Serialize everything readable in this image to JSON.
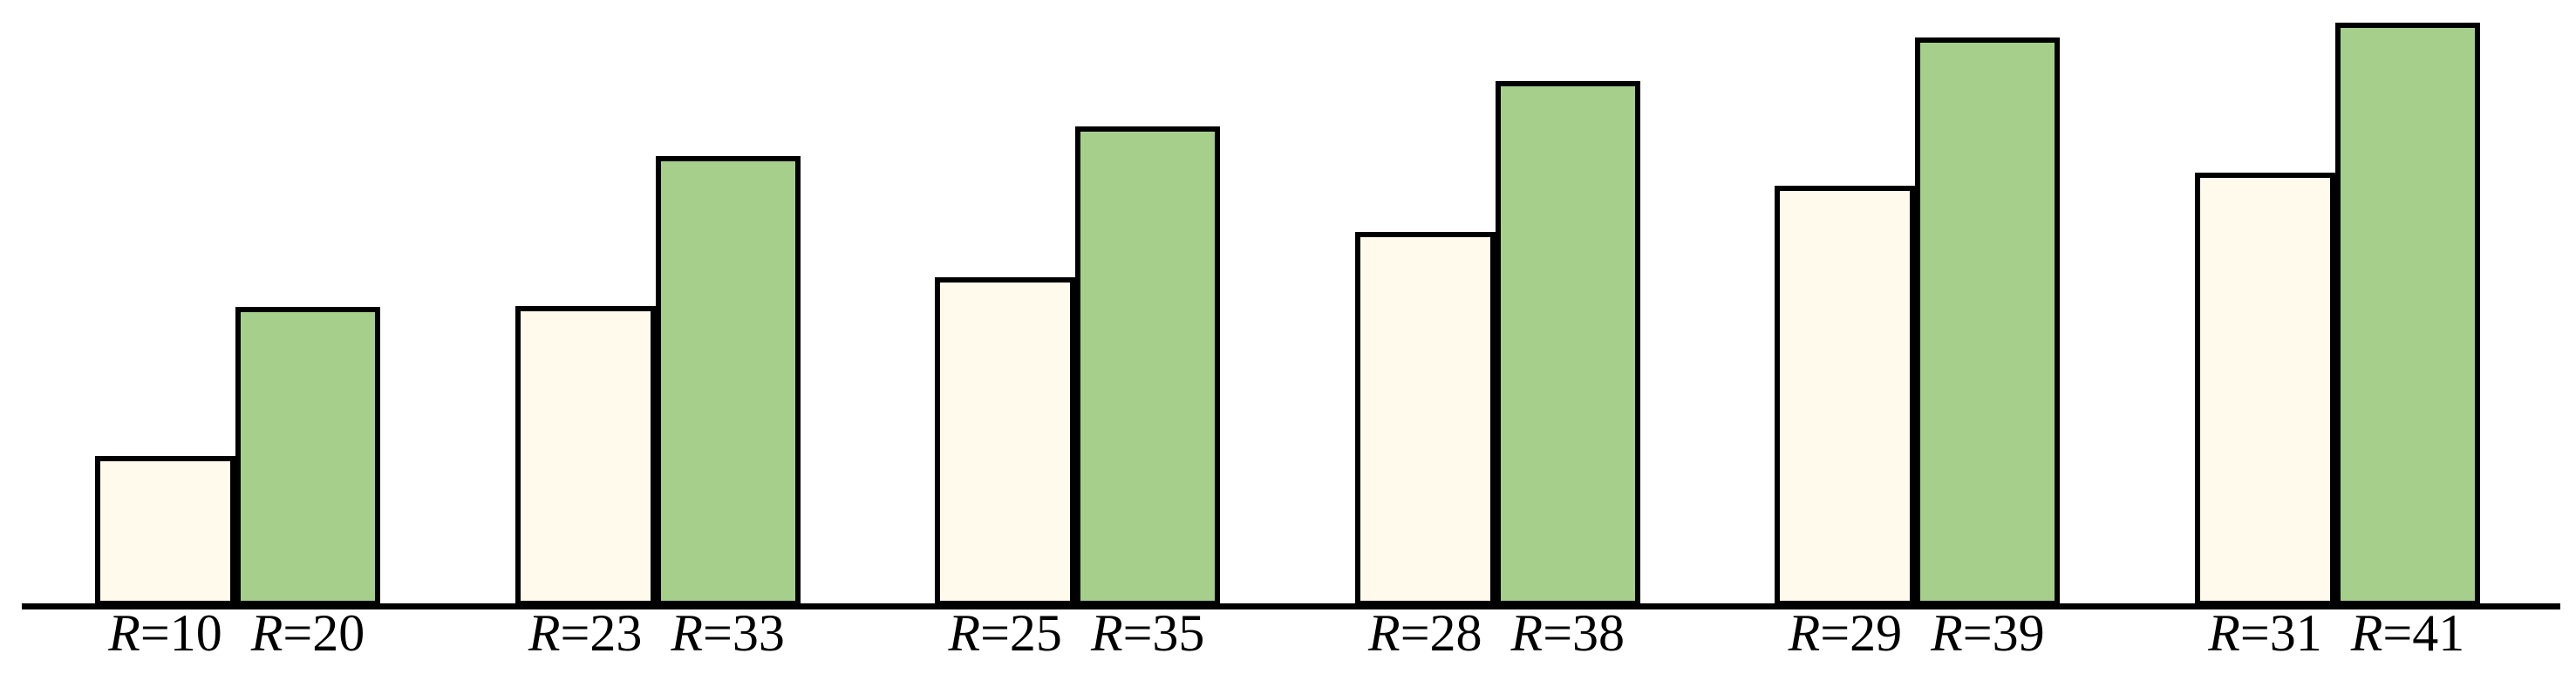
{
  "background_color": "#ffffff",
  "chart_data": {
    "type": "bar",
    "title": "",
    "xlabel": "",
    "ylabel": "",
    "y_axis_visible": false,
    "x_axis_line_visible": true,
    "gridlines": false,
    "legend": null,
    "edge_color": "#000000",
    "axis_color": "#000000",
    "bar_colors": {
      "cream": "#fffaec",
      "green": "#a6cf8c"
    },
    "value_note": "heights are unitless fractions of plot height (no y-axis shown)",
    "series_summary": [
      {
        "name": "cream-left-bars",
        "color": "#fffaec",
        "tick_labels": [
          "R=10",
          "R=23",
          "R=25",
          "R=28",
          "R=29",
          "R=31"
        ],
        "heights_frac": [
          0.244,
          0.493,
          0.54,
          0.616,
          0.692,
          0.714
        ]
      },
      {
        "name": "green-right-bars",
        "color": "#a6cf8c",
        "tick_labels": [
          "R=20",
          "R=33",
          "R=35",
          "R=38",
          "R=39",
          "R=41"
        ],
        "heights_frac": [
          0.491,
          0.741,
          0.79,
          0.866,
          0.938,
          0.962
        ]
      }
    ],
    "groups": [
      {
        "bars": [
          {
            "series": "cream",
            "label": "R=10",
            "label_var": "R",
            "label_rest": "=10",
            "R": 10,
            "height_frac": 0.244
          },
          {
            "series": "green",
            "label": "R=20",
            "label_var": "R",
            "label_rest": "=20",
            "R": 20,
            "height_frac": 0.491
          }
        ]
      },
      {
        "bars": [
          {
            "series": "cream",
            "label": "R=23",
            "label_var": "R",
            "label_rest": "=23",
            "R": 23,
            "height_frac": 0.493
          },
          {
            "series": "green",
            "label": "R=33",
            "label_var": "R",
            "label_rest": "=33",
            "R": 33,
            "height_frac": 0.741
          }
        ]
      },
      {
        "bars": [
          {
            "series": "cream",
            "label": "R=25",
            "label_var": "R",
            "label_rest": "=25",
            "R": 25,
            "height_frac": 0.54
          },
          {
            "series": "green",
            "label": "R=35",
            "label_var": "R",
            "label_rest": "=35",
            "R": 35,
            "height_frac": 0.79
          }
        ]
      },
      {
        "bars": [
          {
            "series": "cream",
            "label": "R=28",
            "label_var": "R",
            "label_rest": "=28",
            "R": 28,
            "height_frac": 0.616
          },
          {
            "series": "green",
            "label": "R=38",
            "label_var": "R",
            "label_rest": "=38",
            "R": 38,
            "height_frac": 0.866
          }
        ]
      },
      {
        "bars": [
          {
            "series": "cream",
            "label": "R=29",
            "label_var": "R",
            "label_rest": "=29",
            "R": 29,
            "height_frac": 0.692
          },
          {
            "series": "green",
            "label": "R=39",
            "label_var": "R",
            "label_rest": "=39",
            "R": 39,
            "height_frac": 0.938
          }
        ]
      },
      {
        "bars": [
          {
            "series": "cream",
            "label": "R=31",
            "label_var": "R",
            "label_rest": "=31",
            "R": 31,
            "height_frac": 0.714
          },
          {
            "series": "green",
            "label": "R=41",
            "label_var": "R",
            "label_rest": "=41",
            "R": 41,
            "height_frac": 0.962
          }
        ]
      }
    ]
  }
}
